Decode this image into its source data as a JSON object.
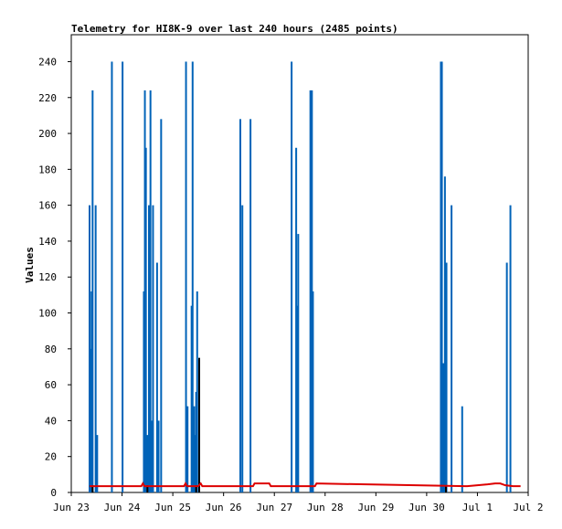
{
  "chart_data": {
    "type": "bar",
    "title": "Telemetry for HI8K-9 over last 240 hours (2485 points)",
    "xlabel": "",
    "ylabel": "Values",
    "x_range_days": [
      0,
      9
    ],
    "ylim": [
      0,
      255
    ],
    "x_tick_labels": [
      "Jun 23",
      "Jun 24",
      "Jun 25",
      "Jun 26",
      "Jun 27",
      "Jun 28",
      "Jun 29",
      "Jun 30",
      "Jul 1",
      "Jul 2"
    ],
    "y_ticks": [
      0,
      20,
      40,
      60,
      80,
      100,
      120,
      140,
      160,
      180,
      200,
      220,
      240
    ],
    "grid": false,
    "legend": "none",
    "series": [
      {
        "color": "#0063b8",
        "style": "spikes",
        "points": [
          {
            "x": 0.36,
            "y": 160
          },
          {
            "x": 0.38,
            "y": 80
          },
          {
            "x": 0.4,
            "y": 112
          },
          {
            "x": 0.42,
            "y": 224
          },
          {
            "x": 0.48,
            "y": 160
          },
          {
            "x": 0.51,
            "y": 32
          },
          {
            "x": 0.8,
            "y": 240
          },
          {
            "x": 1.01,
            "y": 240
          },
          {
            "x": 1.43,
            "y": 112
          },
          {
            "x": 1.45,
            "y": 224
          },
          {
            "x": 1.47,
            "y": 192
          },
          {
            "x": 1.5,
            "y": 32
          },
          {
            "x": 1.53,
            "y": 160
          },
          {
            "x": 1.56,
            "y": 224
          },
          {
            "x": 1.58,
            "y": 40
          },
          {
            "x": 1.61,
            "y": 160
          },
          {
            "x": 1.69,
            "y": 128
          },
          {
            "x": 1.72,
            "y": 40
          },
          {
            "x": 1.77,
            "y": 208
          },
          {
            "x": 2.26,
            "y": 240
          },
          {
            "x": 2.29,
            "y": 48
          },
          {
            "x": 2.37,
            "y": 104
          },
          {
            "x": 2.39,
            "y": 240
          },
          {
            "x": 2.42,
            "y": 48
          },
          {
            "x": 2.44,
            "y": 32
          },
          {
            "x": 2.46,
            "y": 56
          },
          {
            "x": 2.48,
            "y": 112
          },
          {
            "x": 3.33,
            "y": 208
          },
          {
            "x": 3.37,
            "y": 160
          },
          {
            "x": 3.53,
            "y": 208
          },
          {
            "x": 4.34,
            "y": 240
          },
          {
            "x": 4.43,
            "y": 192
          },
          {
            "x": 4.45,
            "y": 104
          },
          {
            "x": 4.47,
            "y": 144
          },
          {
            "x": 4.71,
            "y": 224
          },
          {
            "x": 4.74,
            "y": 224
          },
          {
            "x": 4.76,
            "y": 112
          },
          {
            "x": 7.28,
            "y": 240
          },
          {
            "x": 7.3,
            "y": 240
          },
          {
            "x": 7.33,
            "y": 72
          },
          {
            "x": 7.36,
            "y": 176
          },
          {
            "x": 7.39,
            "y": 128
          },
          {
            "x": 7.49,
            "y": 160
          },
          {
            "x": 7.7,
            "y": 48
          },
          {
            "x": 8.58,
            "y": 128
          },
          {
            "x": 8.65,
            "y": 160
          }
        ]
      },
      {
        "color": "#000000",
        "style": "spikes",
        "points": [
          {
            "x": 0.42,
            "y": 4
          },
          {
            "x": 1.5,
            "y": 4
          },
          {
            "x": 2.46,
            "y": 4
          },
          {
            "x": 2.52,
            "y": 75
          },
          {
            "x": 7.38,
            "y": 4
          }
        ]
      },
      {
        "color": "#dd0000",
        "style": "line",
        "x": [
          0.36,
          1.38,
          1.41,
          1.44,
          2.22,
          2.25,
          2.28,
          2.5,
          2.55,
          2.58,
          3.58,
          3.61,
          3.9,
          3.93,
          4.8,
          4.83,
          7.8,
          8.0,
          8.2,
          8.35,
          8.45,
          8.55,
          8.7,
          8.85
        ],
        "values": [
          3.5,
          3.5,
          5,
          3.5,
          3.5,
          5,
          3.5,
          3.5,
          5,
          3.5,
          3.5,
          5,
          5,
          3.5,
          3.5,
          5,
          3.5,
          4,
          4.5,
          5,
          5,
          4,
          3.5,
          3.5
        ]
      }
    ]
  }
}
